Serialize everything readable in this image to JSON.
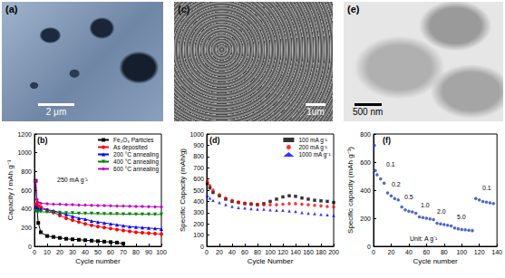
{
  "images": [
    {
      "label": "(a)",
      "scale_bar": "2 μm"
    },
    {
      "label": "(c)",
      "scale_bar": "1um"
    },
    {
      "label": "(e)",
      "scale_bar": "500 nm"
    }
  ],
  "chart_data": [
    {
      "type": "line",
      "title": "(b)",
      "annotations": [
        "250 mA g⁻¹"
      ],
      "x_label": "Cycle number",
      "y_label": "Capacity / mAh g⁻¹",
      "x": [
        1,
        2,
        3,
        5,
        10,
        15,
        20,
        25,
        30,
        35,
        40,
        45,
        50,
        55,
        60,
        65,
        70,
        75,
        80,
        85,
        90,
        95,
        100
      ],
      "xlim": [
        0,
        100
      ],
      "xticks": [
        0,
        10,
        20,
        30,
        40,
        50,
        60,
        70,
        80,
        90,
        100
      ],
      "ylim": [
        0,
        1200
      ],
      "yticks": [
        0,
        200,
        400,
        600,
        800,
        1000,
        1200
      ],
      "grid": false,
      "legend": "upper right",
      "series": [
        {
          "name": "Fe₂O₃ Particles",
          "color": "#000000",
          "marker": "square",
          "values": [
            700,
            400,
            250,
            150,
            110,
            100,
            90,
            80,
            75,
            70,
            65,
            60,
            55,
            50,
            45,
            40,
            30,
            null,
            null,
            null,
            null,
            null,
            null
          ]
        },
        {
          "name": "As deposited",
          "color": "#ff0000",
          "marker": "circle",
          "values": [
            450,
            440,
            430,
            420,
            390,
            360,
            330,
            300,
            280,
            260,
            240,
            225,
            210,
            200,
            190,
            180,
            170,
            160,
            150,
            145,
            140,
            135,
            130
          ]
        },
        {
          "name": "200 °C annealing",
          "color": "#0000ff",
          "marker": "triangle",
          "values": [
            420,
            410,
            400,
            400,
            390,
            380,
            360,
            340,
            320,
            300,
            290,
            270,
            260,
            250,
            240,
            230,
            220,
            210,
            205,
            200,
            195,
            190,
            185
          ]
        },
        {
          "name": "400 °C annealing",
          "color": "#008000",
          "marker": "triangle_down",
          "values": [
            380,
            375,
            370,
            370,
            365,
            360,
            360,
            355,
            355,
            350,
            350,
            350,
            348,
            346,
            345,
            345,
            344,
            343,
            342,
            342,
            341,
            340,
            340
          ]
        },
        {
          "name": "600 °C annealing",
          "color": "#c000c0",
          "marker": "diamond",
          "values": [
            700,
            500,
            470,
            460,
            455,
            450,
            450,
            445,
            445,
            440,
            440,
            438,
            436,
            435,
            433,
            430,
            430,
            428,
            426,
            425,
            424,
            422,
            420
          ]
        }
      ]
    },
    {
      "type": "scatter",
      "title": "(d)",
      "x_label": "Cycle Number",
      "y_label": "Specific Capacity (mAh/g)",
      "x": [
        1,
        5,
        10,
        20,
        30,
        40,
        50,
        60,
        70,
        80,
        90,
        100,
        110,
        120,
        130,
        140,
        150,
        160,
        170,
        180,
        190,
        200
      ],
      "xlim": [
        0,
        200
      ],
      "xticks": [
        0,
        20,
        40,
        60,
        80,
        100,
        120,
        140,
        160,
        180,
        200
      ],
      "ylim": [
        0,
        1000
      ],
      "yticks": [
        0,
        100,
        200,
        300,
        400,
        500,
        600,
        700,
        800,
        900,
        1000
      ],
      "grid": false,
      "legend": "upper right",
      "series": [
        {
          "name": "100 mA g⁻¹",
          "color": "#000000",
          "marker": "square",
          "values": [
            560,
            520,
            480,
            450,
            420,
            400,
            390,
            380,
            375,
            370,
            380,
            400,
            420,
            440,
            450,
            445,
            430,
            420,
            410,
            405,
            400,
            390
          ]
        },
        {
          "name": "200 mA g⁻¹",
          "color": "#ff0000",
          "marker": "circle",
          "values": [
            580,
            540,
            500,
            460,
            430,
            410,
            395,
            385,
            380,
            375,
            370,
            370,
            370,
            375,
            380,
            380,
            375,
            370,
            365,
            360,
            355,
            350
          ]
        },
        {
          "name": "1000 mA g⁻¹",
          "color": "#0000ff",
          "marker": "triangle",
          "values": [
            450,
            430,
            410,
            390,
            370,
            355,
            345,
            340,
            335,
            330,
            330,
            325,
            320,
            320,
            315,
            310,
            300,
            295,
            290,
            285,
            280,
            275
          ]
        }
      ]
    },
    {
      "type": "scatter",
      "title": "(f)",
      "annotations": [
        "0.1",
        "0.2",
        "0.5",
        "1.0",
        "2.0",
        "5.0",
        "0.1",
        "Unit: A g⁻¹"
      ],
      "x_label": "Cycle number",
      "y_label": "Specific capacity (mAh g⁻¹)",
      "x": [
        1,
        2,
        4,
        8,
        12,
        16,
        20,
        24,
        28,
        32,
        36,
        40,
        44,
        48,
        52,
        56,
        60,
        64,
        68,
        72,
        76,
        80,
        84,
        88,
        92,
        96,
        100,
        104,
        108,
        112,
        116,
        120,
        124,
        128,
        132,
        136
      ],
      "xlim": [
        0,
        140
      ],
      "xticks": [
        0,
        20,
        40,
        60,
        80,
        100,
        120,
        140
      ],
      "ylim": [
        0,
        800
      ],
      "yticks": [
        0,
        200,
        400,
        600,
        800
      ],
      "grid": false,
      "series": [
        {
          "color": "#2040c0",
          "marker": "circle",
          "values": [
            720,
            540,
            510,
            480,
            450,
            380,
            360,
            340,
            330,
            280,
            260,
            250,
            245,
            235,
            210,
            205,
            200,
            195,
            190,
            165,
            160,
            155,
            150,
            145,
            130,
            125,
            120,
            118,
            115,
            112,
            340,
            330,
            320,
            315,
            310,
            305
          ]
        }
      ]
    }
  ]
}
